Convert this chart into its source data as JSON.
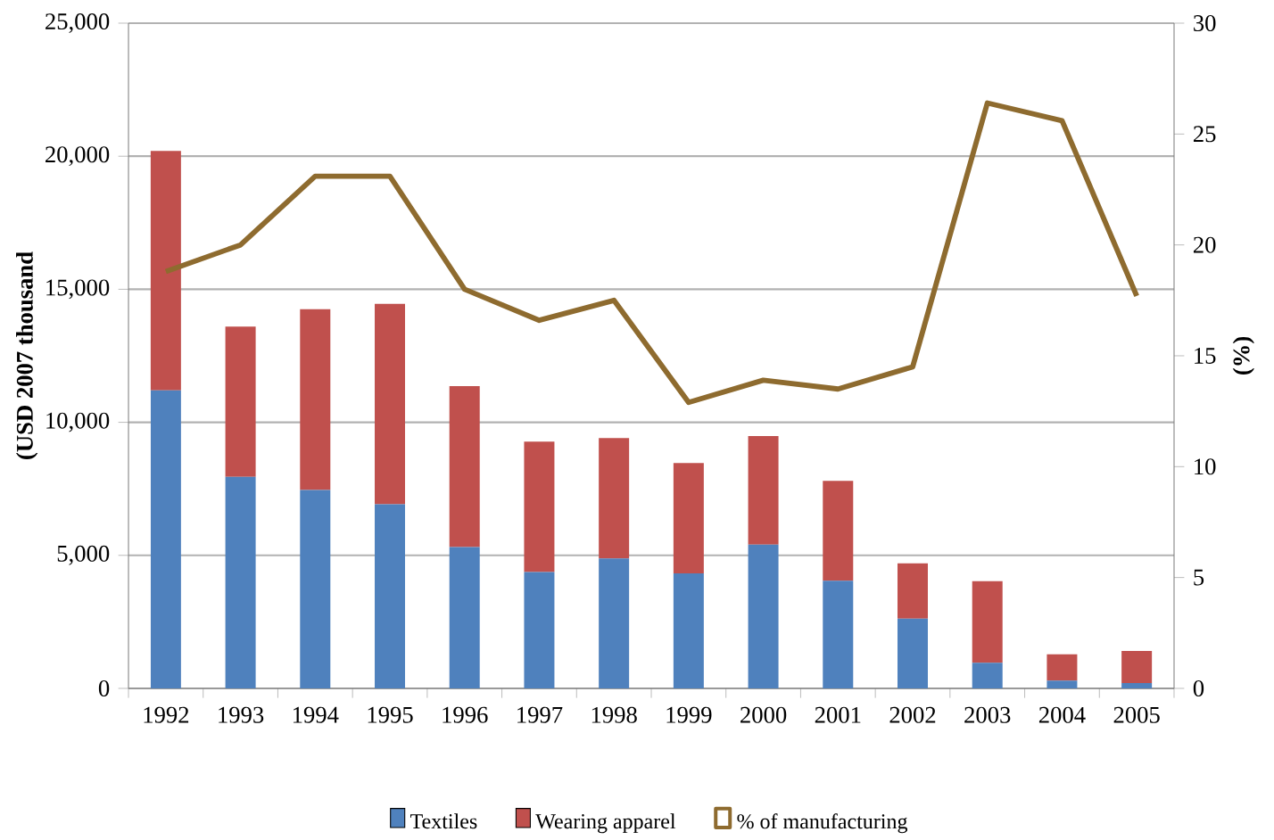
{
  "chart_data": {
    "type": "bar",
    "stacked": true,
    "ylabel": "(USD  2007 thousand",
    "y2label": "(%)",
    "categories": [
      "1992",
      "1993",
      "1994",
      "1995",
      "1996",
      "1997",
      "1998",
      "1999",
      "2000",
      "2001",
      "2002",
      "2003",
      "2004",
      "2005"
    ],
    "series": [
      {
        "name": "Textiles",
        "color": "#4f81bd",
        "values": [
          11200,
          7950,
          7460,
          6920,
          5310,
          4370,
          4880,
          4320,
          5400,
          4050,
          2620,
          960,
          290,
          200
        ]
      },
      {
        "name": "Wearing apparel",
        "color": "#c0504d",
        "values": [
          9000,
          5650,
          6790,
          7530,
          6050,
          4900,
          4530,
          4150,
          4080,
          3750,
          2080,
          3070,
          990,
          1210
        ]
      },
      {
        "name": "% of manufacturing",
        "type": "line",
        "axis": "y2",
        "color": "#8e6b2f",
        "values": [
          18.8,
          20.0,
          23.1,
          23.1,
          18.0,
          16.6,
          17.5,
          12.9,
          13.9,
          13.5,
          14.5,
          26.4,
          25.6,
          17.7
        ]
      }
    ],
    "ylim": [
      0,
      25000
    ],
    "yticks": [
      {
        "value": 0,
        "label": "0"
      },
      {
        "value": 5000,
        "label": "5,000"
      },
      {
        "value": 10000,
        "label": "10,000"
      },
      {
        "value": 15000,
        "label": "15,000"
      },
      {
        "value": 20000,
        "label": "20,000"
      },
      {
        "value": 25000,
        "label": "25,000"
      }
    ],
    "y2lim": [
      0,
      30
    ],
    "y2ticks": [
      0,
      5,
      10,
      15,
      20,
      25,
      30
    ],
    "grid": "y",
    "legend": "bottom"
  }
}
